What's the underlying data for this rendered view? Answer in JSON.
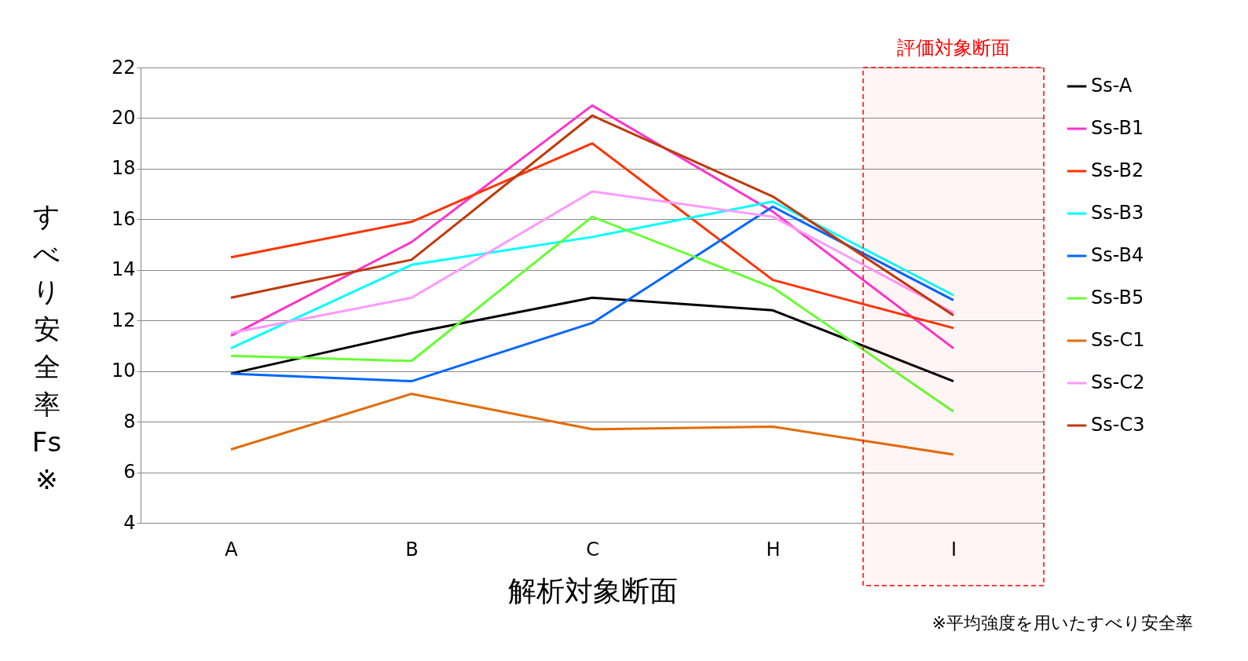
{
  "chart_data": {
    "type": "line",
    "xlabel": "解析対象断面",
    "ylabel": "すべり安全率Fs※",
    "categories": [
      "A",
      "B",
      "C",
      "H",
      "I"
    ],
    "ylim": [
      4,
      22
    ],
    "yticks": [
      4,
      6,
      8,
      10,
      12,
      14,
      16,
      18,
      20,
      22
    ],
    "grid": "y",
    "legend": "right",
    "marker": "none",
    "series": [
      {
        "name": "Ss-A",
        "color": "#000000",
        "values": [
          9.9,
          11.5,
          12.9,
          12.4,
          9.6
        ]
      },
      {
        "name": "Ss-B1",
        "color": "#ff33cc",
        "values": [
          11.4,
          15.1,
          20.5,
          16.3,
          10.9
        ]
      },
      {
        "name": "Ss-B2",
        "color": "#ff3300",
        "values": [
          14.5,
          15.9,
          19.0,
          13.6,
          11.7
        ]
      },
      {
        "name": "Ss-B3",
        "color": "#00ffff",
        "values": [
          10.9,
          14.2,
          15.3,
          16.7,
          13.0
        ]
      },
      {
        "name": "Ss-B4",
        "color": "#0066ff",
        "values": [
          9.9,
          9.6,
          11.9,
          16.5,
          12.8
        ]
      },
      {
        "name": "Ss-B5",
        "color": "#66ff33",
        "values": [
          10.6,
          10.4,
          16.1,
          13.3,
          8.4
        ]
      },
      {
        "name": "Ss-C1",
        "color": "#e36c0a",
        "values": [
          6.9,
          9.1,
          7.7,
          7.8,
          6.7
        ]
      },
      {
        "name": "Ss-C2",
        "color": "#ff99ff",
        "values": [
          11.5,
          12.9,
          17.1,
          16.1,
          12.3
        ]
      },
      {
        "name": "Ss-C3",
        "color": "#c0390b",
        "values": [
          12.9,
          14.4,
          20.1,
          16.9,
          12.2
        ]
      }
    ],
    "bands": [
      {
        "axis": "x",
        "from": "I",
        "to": "I",
        "label": "評価対象断面",
        "color": "#ff0000"
      }
    ],
    "annotations": [
      "※平均強度を用いたすべり安全率"
    ]
  }
}
